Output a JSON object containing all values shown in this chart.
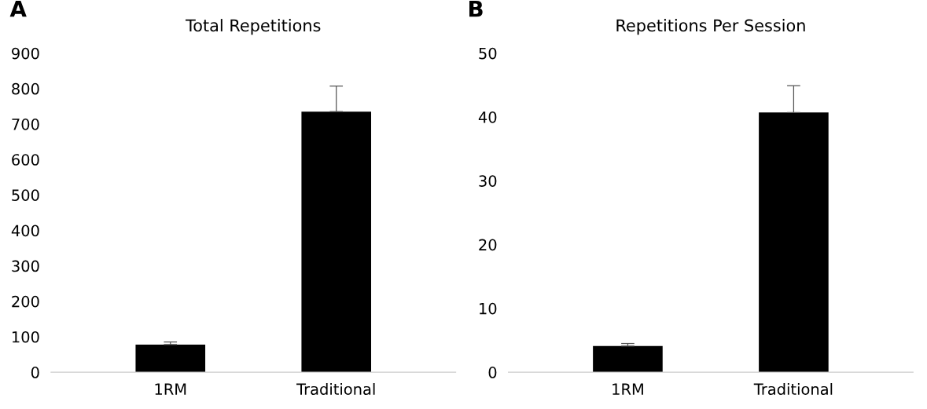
{
  "chart_data": [
    {
      "type": "bar",
      "title": "Total Repetitions",
      "annotations": [
        "A"
      ],
      "categories": [
        "1RM",
        "Traditional"
      ],
      "values": [
        78,
        735
      ],
      "errors": [
        7,
        72
      ],
      "color": "#000000",
      "ylim": [
        0,
        900
      ],
      "yticks": [
        0,
        100,
        200,
        300,
        400,
        500,
        600,
        700,
        800,
        900
      ],
      "grid": false
    },
    {
      "type": "bar",
      "title": "Repetitions Per Session",
      "annotations": [
        "B"
      ],
      "categories": [
        "1RM",
        "Traditional"
      ],
      "values": [
        4.1,
        40.7
      ],
      "errors": [
        0.4,
        4.2
      ],
      "color": "#000000",
      "ylim": [
        0,
        50
      ],
      "yticks": [
        0,
        10,
        20,
        30,
        40,
        50
      ],
      "grid": false
    }
  ]
}
